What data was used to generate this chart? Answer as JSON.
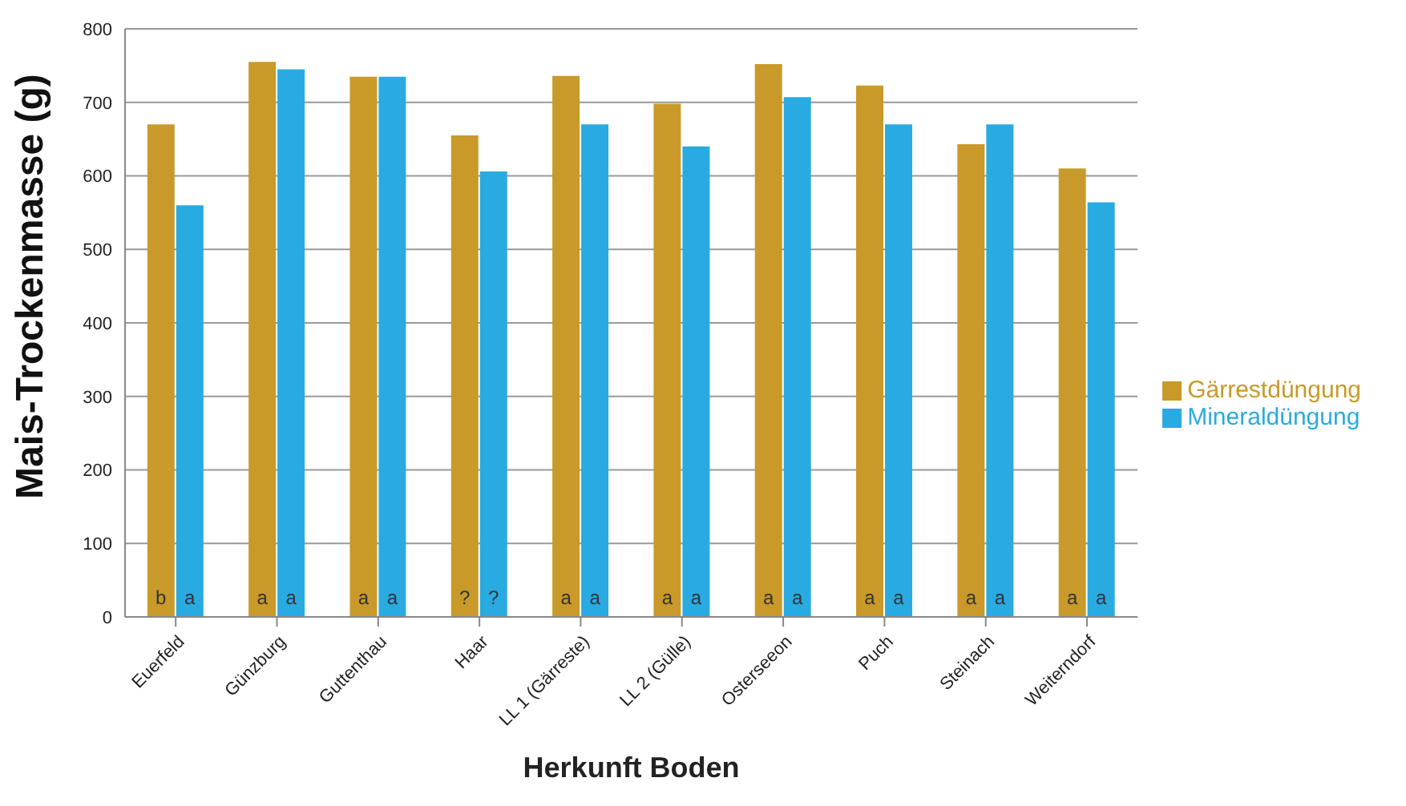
{
  "chart_data": {
    "type": "bar",
    "xlabel": "Herkunft Boden",
    "ylabel": "Mais-Trockenmasse (g)",
    "categories": [
      "Euerfeld",
      "Günzburg",
      "Guttenthau",
      "Haar",
      "LL 1 (Gärreste)",
      "LL 2 (Gülle)",
      "Osterseeon",
      "Puch",
      "Steinach",
      "Weiterndorf"
    ],
    "series": [
      {
        "name": "Gärrestdüngung",
        "color": "#c99a2a",
        "values": [
          670,
          755,
          735,
          655,
          736,
          698,
          752,
          723,
          643,
          610
        ],
        "value_labels": [
          "b",
          "a",
          "a",
          "?",
          "a",
          "a",
          "a",
          "a",
          "a",
          "a"
        ]
      },
      {
        "name": "Mineraldüngung",
        "color": "#29abe2",
        "values": [
          560,
          745,
          735,
          606,
          670,
          640,
          707,
          670,
          670,
          564
        ],
        "value_labels": [
          "a",
          "a",
          "a",
          "?",
          "a",
          "a",
          "a",
          "a",
          "a",
          "a"
        ]
      }
    ],
    "ylim": [
      0,
      800
    ],
    "yticks": [
      0,
      100,
      200,
      300,
      400,
      500,
      600,
      700,
      800
    ],
    "grid": "y",
    "legend": "right"
  }
}
